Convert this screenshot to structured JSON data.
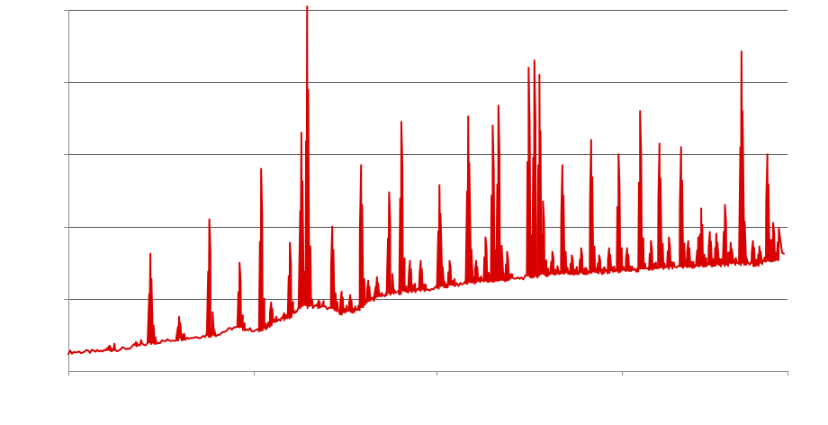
{
  "chart_data": {
    "type": "line",
    "title": "",
    "xlabel": "",
    "ylabel": "",
    "grid": true,
    "legend": "none",
    "colors": {
      "series": "#d90000",
      "grid": "#555555",
      "axis": "#8a8a8a",
      "background": "#ffffff"
    },
    "xlim": [
      0,
      1
    ],
    "ylim": [
      0,
      1
    ],
    "x_ticks": [
      0,
      0.2575,
      0.5125,
      0.77,
      1
    ],
    "y_gridlines": [
      0.2,
      0.4,
      0.6,
      0.8,
      1.0
    ],
    "series": [
      {
        "baseline": [
          [
            0.0,
            0.052
          ],
          [
            0.04,
            0.054
          ],
          [
            0.08,
            0.062
          ],
          [
            0.11,
            0.075
          ],
          [
            0.14,
            0.085
          ],
          [
            0.18,
            0.095
          ],
          [
            0.205,
            0.1
          ],
          [
            0.23,
            0.12
          ],
          [
            0.25,
            0.115
          ],
          [
            0.27,
            0.11
          ],
          [
            0.285,
            0.135
          ],
          [
            0.305,
            0.145
          ],
          [
            0.325,
            0.18
          ],
          [
            0.36,
            0.175
          ],
          [
            0.38,
            0.16
          ],
          [
            0.4,
            0.165
          ],
          [
            0.42,
            0.195
          ],
          [
            0.44,
            0.21
          ],
          [
            0.47,
            0.22
          ],
          [
            0.5,
            0.225
          ],
          [
            0.53,
            0.235
          ],
          [
            0.56,
            0.245
          ],
          [
            0.6,
            0.25
          ],
          [
            0.64,
            0.26
          ],
          [
            0.68,
            0.27
          ],
          [
            0.72,
            0.27
          ],
          [
            0.76,
            0.275
          ],
          [
            0.8,
            0.28
          ],
          [
            0.84,
            0.285
          ],
          [
            0.88,
            0.29
          ],
          [
            0.92,
            0.295
          ],
          [
            0.96,
            0.295
          ],
          [
            0.985,
            0.31
          ]
        ],
        "peaks": [
          [
            0.057,
            0.07
          ],
          [
            0.094,
            0.08
          ],
          [
            0.114,
            0.325
          ],
          [
            0.154,
            0.15
          ],
          [
            0.196,
            0.42
          ],
          [
            0.238,
            0.3
          ],
          [
            0.268,
            0.56
          ],
          [
            0.282,
            0.19
          ],
          [
            0.3,
            0.16
          ],
          [
            0.308,
            0.355
          ],
          [
            0.324,
            0.66
          ],
          [
            0.332,
            1.01
          ],
          [
            0.348,
            0.195
          ],
          [
            0.367,
            0.4
          ],
          [
            0.38,
            0.22
          ],
          [
            0.392,
            0.21
          ],
          [
            0.407,
            0.57
          ],
          [
            0.417,
            0.25
          ],
          [
            0.429,
            0.26
          ],
          [
            0.446,
            0.495
          ],
          [
            0.463,
            0.69
          ],
          [
            0.475,
            0.305
          ],
          [
            0.49,
            0.305
          ],
          [
            0.516,
            0.515
          ],
          [
            0.53,
            0.305
          ],
          [
            0.556,
            0.705
          ],
          [
            0.567,
            0.305
          ],
          [
            0.58,
            0.37
          ],
          [
            0.59,
            0.68
          ],
          [
            0.598,
            0.735
          ],
          [
            0.61,
            0.33
          ],
          [
            0.64,
            0.84
          ],
          [
            0.648,
            0.86
          ],
          [
            0.655,
            0.82
          ],
          [
            0.66,
            0.47
          ],
          [
            0.673,
            0.33
          ],
          [
            0.687,
            0.57
          ],
          [
            0.7,
            0.32
          ],
          [
            0.713,
            0.34
          ],
          [
            0.727,
            0.64
          ],
          [
            0.738,
            0.32
          ],
          [
            0.752,
            0.34
          ],
          [
            0.765,
            0.6
          ],
          [
            0.777,
            0.34
          ],
          [
            0.795,
            0.72
          ],
          [
            0.81,
            0.36
          ],
          [
            0.822,
            0.63
          ],
          [
            0.835,
            0.37
          ],
          [
            0.852,
            0.62
          ],
          [
            0.862,
            0.36
          ],
          [
            0.876,
            0.37
          ],
          [
            0.88,
            0.45
          ],
          [
            0.892,
            0.385
          ],
          [
            0.901,
            0.38
          ],
          [
            0.913,
            0.46
          ],
          [
            0.921,
            0.355
          ],
          [
            0.936,
            0.885
          ],
          [
            0.952,
            0.36
          ],
          [
            0.961,
            0.345
          ],
          [
            0.972,
            0.6
          ],
          [
            0.98,
            0.41
          ],
          [
            0.988,
            0.395
          ]
        ]
      }
    ]
  }
}
